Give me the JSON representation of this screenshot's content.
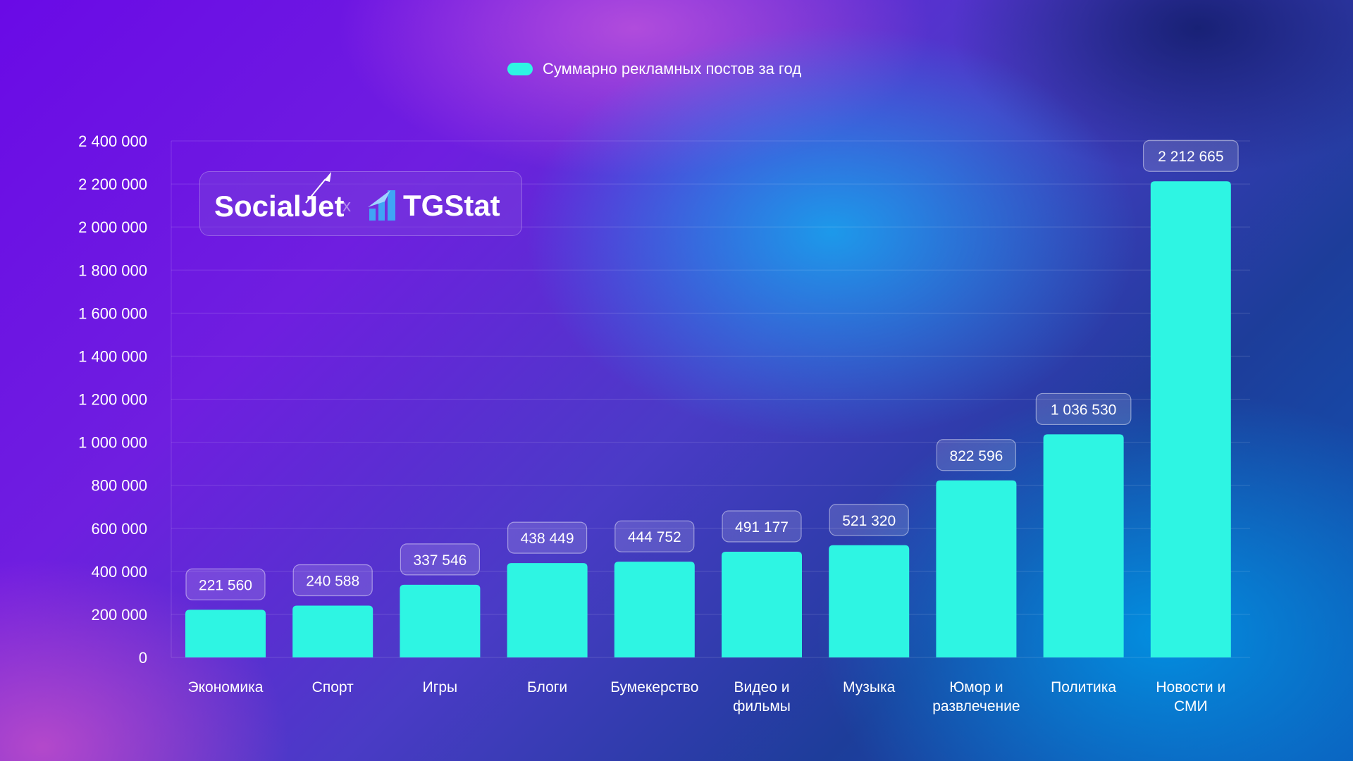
{
  "legend": {
    "label": "Суммарно рекламных постов за год"
  },
  "branding": {
    "partner1": "SocialJet",
    "separator": "x",
    "partner2": "TGStat"
  },
  "colors": {
    "bar": "#2ef5e3",
    "grid": "rgba(255,255,255,0.15)"
  },
  "chart_data": {
    "type": "bar",
    "categories": [
      [
        "Экономика"
      ],
      [
        "Спорт"
      ],
      [
        "Игры"
      ],
      [
        "Блоги"
      ],
      [
        "Бумекерство"
      ],
      [
        "Видео и",
        "фильмы"
      ],
      [
        "Музыка"
      ],
      [
        "Юмор и",
        "развлечение"
      ],
      [
        "Политика"
      ],
      [
        "Новости и",
        "СМИ"
      ]
    ],
    "series": [
      {
        "name": "Суммарно рекламных постов за год",
        "values": [
          221560,
          240588,
          337546,
          438449,
          444752,
          491177,
          521320,
          822596,
          1036530,
          2212665
        ],
        "labels": [
          "221 560",
          "240 588",
          "337 546",
          "438 449",
          "444 752",
          "491 177",
          "521 320",
          "822 596",
          "1 036 530",
          "2 212 665"
        ]
      }
    ],
    "ylim": [
      0,
      2400000
    ],
    "yticks": [
      0,
      200000,
      400000,
      600000,
      800000,
      1000000,
      1200000,
      1400000,
      1600000,
      1800000,
      2000000,
      2200000,
      2400000
    ],
    "ytick_labels": [
      "0",
      "200 000",
      "400 000",
      "600 000",
      "800 000",
      "1 000 000",
      "1 200 000",
      "1 400 000",
      "1 600 000",
      "1 800 000",
      "2 000 000",
      "2 200 000",
      "2 400 000"
    ],
    "grid": true,
    "legend_position": "top-center"
  }
}
